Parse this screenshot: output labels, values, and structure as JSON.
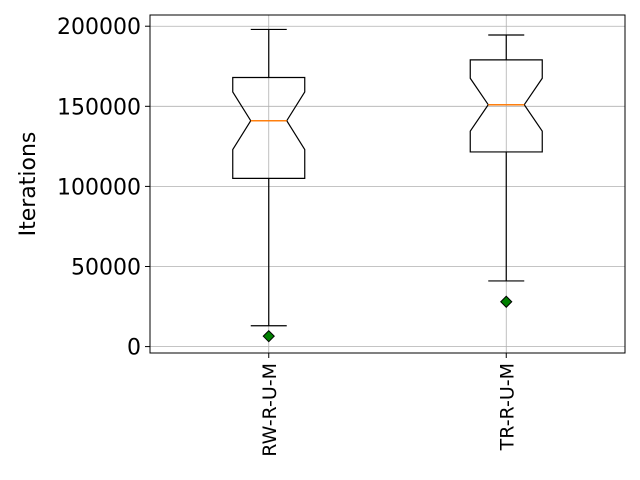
{
  "chart_data": {
    "type": "box",
    "notched": true,
    "categories": [
      "RW-R-U-M",
      "TR-R-U-M"
    ],
    "boxes": [
      {
        "whisker_low": 13000,
        "q1": 105000,
        "median": 141000,
        "q3": 168000,
        "whisker_high": 198000,
        "notch_low": 123000,
        "notch_high": 159000,
        "outliers": [
          6500
        ]
      },
      {
        "whisker_low": 41000,
        "q1": 121500,
        "median": 151000,
        "q3": 179000,
        "whisker_high": 194500,
        "notch_low": 134500,
        "notch_high": 167500,
        "outliers": [
          28000
        ]
      }
    ],
    "title": "",
    "xlabel": "",
    "ylabel": "Iterations",
    "ylim": [
      -4000,
      207000
    ],
    "yticks": [
      0,
      50000,
      100000,
      150000,
      200000
    ],
    "ytick_labels": [
      "0",
      "50000",
      "100000",
      "150000",
      "200000"
    ],
    "grid": true,
    "colors": {
      "box": "#000000",
      "median": "#ff7f0e",
      "outlier_fill": "#008000",
      "grid": "#b0b0b0"
    }
  }
}
